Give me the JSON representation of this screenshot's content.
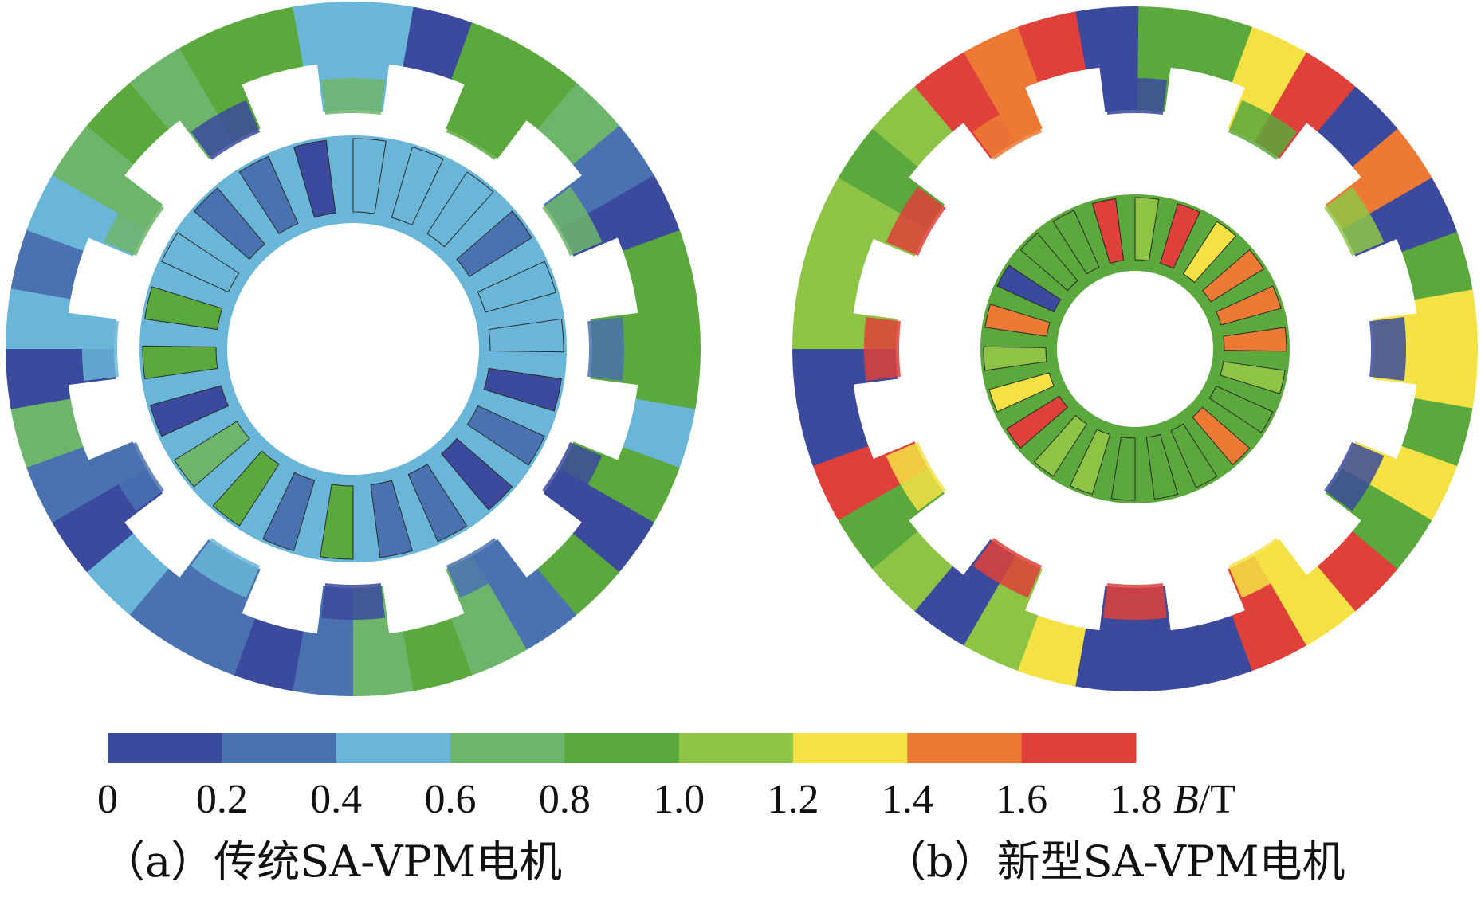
{
  "legend": {
    "ticks": [
      "0",
      "0.2",
      "0.4",
      "0.6",
      "0.8",
      "1.0",
      "1.2",
      "1.4",
      "1.6",
      "1.8"
    ],
    "unit_italic": "B",
    "unit_rest": "/T",
    "colors": [
      "#3b4a9c",
      "#4a72b0",
      "#6ab6d8",
      "#6db56a",
      "#5ba83c",
      "#8ec446",
      "#f4e244",
      "#ec7a34",
      "#e0403a"
    ]
  },
  "panels": [
    {
      "caption": "（a）传统SA-VPM电机",
      "stator_teeth": 12,
      "rotor_poles": 22,
      "palette": [
        "#6ab6d8",
        "#6db56a",
        "#5ba83c",
        "#3b4a9c",
        "#4a72b0"
      ]
    },
    {
      "caption": "（b）新型SA-VPM电机",
      "stator_teeth": 12,
      "rotor_poles": 22,
      "palette": [
        "#5ba83c",
        "#8ec446",
        "#ec7a34",
        "#e0403a",
        "#3b4a9c",
        "#f4e244"
      ]
    }
  ]
}
